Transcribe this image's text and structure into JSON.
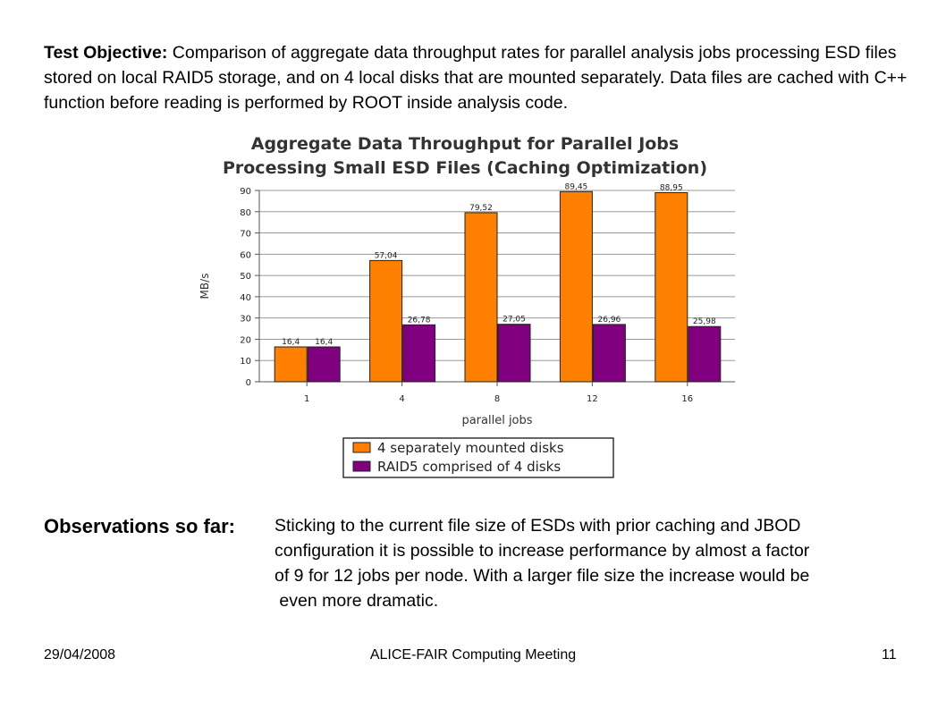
{
  "slide": {
    "objective_label": "Test Objective:",
    "objective_text": "Comparison of aggregate data throughput rates for parallel analysis jobs processing ESD files stored on local RAID5 storage, and on 4 local disks that are mounted separately. Data files are cached with C++ function before reading is performed by ROOT inside analysis code.",
    "observations_heading": "Observations so far:",
    "observations_lines": [
      "Sticking to the current file size of ESDs with prior caching and JBOD",
      "configuration it is possible to increase performance by almost a factor",
      "of 9 for 12 jobs per node. With a larger file size the increase would be",
      " even more dramatic."
    ]
  },
  "footer": {
    "date": "29/04/2008",
    "title": "ALICE-FAIR Computing Meeting",
    "page": "11"
  },
  "chart_data": {
    "type": "bar",
    "title_lines": [
      "Aggregate Data Throughput for Parallel Jobs",
      "Processing Small ESD Files (Caching Optimization)"
    ],
    "xlabel": "parallel jobs",
    "ylabel": "MB/s",
    "categories": [
      "1",
      "4",
      "8",
      "12",
      "16"
    ],
    "ylim": [
      0,
      90
    ],
    "yticks": [
      0,
      10,
      20,
      30,
      40,
      50,
      60,
      70,
      80,
      90
    ],
    "grid": true,
    "legend_position": "bottom-center",
    "series": [
      {
        "name": "4 separately mounted disks",
        "color": "#ff7f00",
        "values": [
          16.4,
          57.04,
          79.52,
          89.45,
          88.95
        ],
        "labels": [
          "16,4",
          "57,04",
          "79,52",
          "89,45",
          "88,95"
        ]
      },
      {
        "name": "RAID5 comprised of 4 disks",
        "color": "#800080",
        "values": [
          16.4,
          26.78,
          27.05,
          26.96,
          25.98
        ],
        "labels": [
          "16,4",
          "26,78",
          "27,05",
          "26,96",
          "25,98"
        ]
      }
    ]
  }
}
